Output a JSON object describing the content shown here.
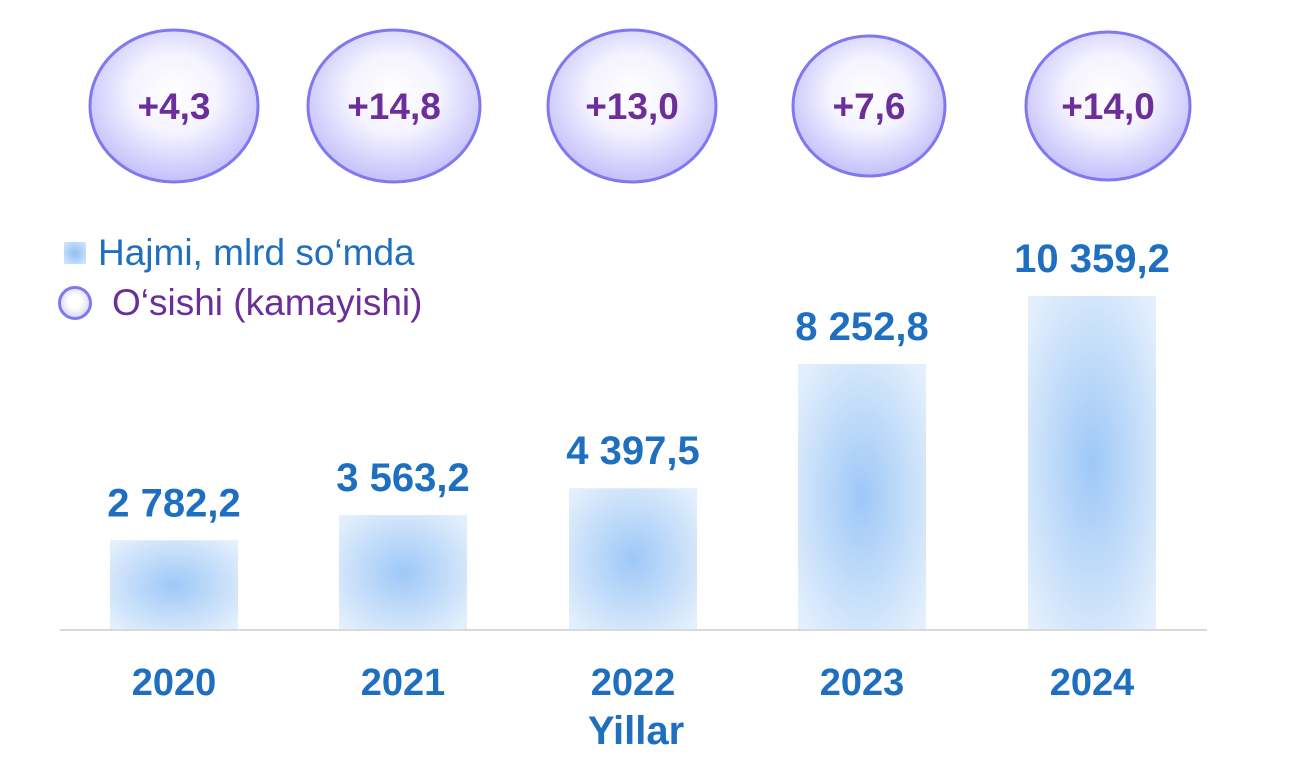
{
  "chart_data": {
    "type": "bar",
    "categories": [
      "2020",
      "2021",
      "2022",
      "2023",
      "2024"
    ],
    "series": [
      {
        "name": "Hajmi, mlrd so‘mda",
        "values": [
          2782.2,
          3563.2,
          4397.5,
          8252.8,
          10359.2
        ],
        "labels": [
          "2 782,2",
          "3 563,2",
          "4 397,5",
          "8 252,8",
          "10 359,2"
        ]
      },
      {
        "name": "O‘sishi (kamayishi)",
        "values": [
          4.3,
          14.8,
          13.0,
          7.6,
          14.0
        ],
        "labels": [
          "+4,3",
          "+14,8",
          "+13,0",
          "+7,6",
          "+14,0"
        ]
      }
    ],
    "xlabel": "Yillar",
    "ylabel": "",
    "grid": false,
    "legend_position": "top-left",
    "colors": {
      "bar_center": "#9ec8f7",
      "bar_edge": "#e3effc",
      "value_label": "#1e6fc0",
      "growth_text": "#6b2e9a",
      "bubble_border": "#7f78f0",
      "bubble_fill": "#ccc8fb",
      "axis_line": "#d9d9d9"
    }
  },
  "legend": {
    "volume_label": "Hajmi, mlrd so‘mda",
    "growth_label": "O‘sishi (kamayishi)"
  }
}
